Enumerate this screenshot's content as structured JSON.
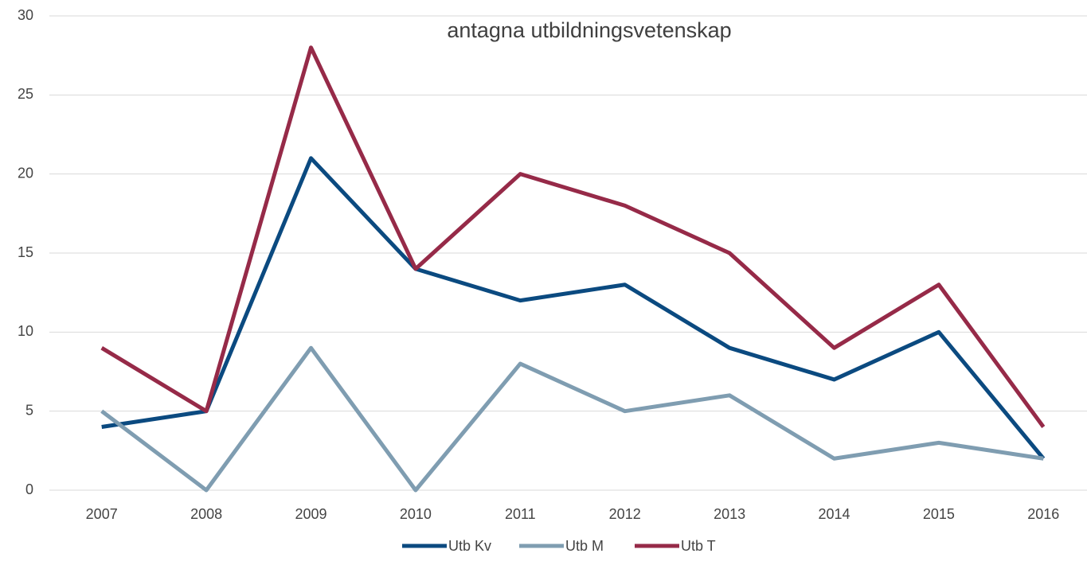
{
  "chart_data": {
    "type": "line",
    "title": "antagna utbildningsvetenskap",
    "categories": [
      "2007",
      "2008",
      "2009",
      "2010",
      "2011",
      "2012",
      "2013",
      "2014",
      "2015",
      "2016"
    ],
    "series": [
      {
        "name": "Utb Kv",
        "color": "#0b4a80",
        "values": [
          4,
          5,
          21,
          14,
          12,
          13,
          9,
          7,
          10,
          2
        ]
      },
      {
        "name": "Utb M",
        "color": "#7f9db1",
        "values": [
          5,
          0,
          9,
          0,
          8,
          5,
          6,
          2,
          3,
          2
        ]
      },
      {
        "name": "Utb T",
        "color": "#962a48",
        "values": [
          9,
          5,
          28,
          14,
          20,
          18,
          15,
          9,
          13,
          4
        ]
      }
    ],
    "ylim": [
      0,
      30
    ],
    "yticks": [
      0,
      5,
      10,
      15,
      20,
      25,
      30
    ],
    "grid": true,
    "legend": "bottom"
  }
}
